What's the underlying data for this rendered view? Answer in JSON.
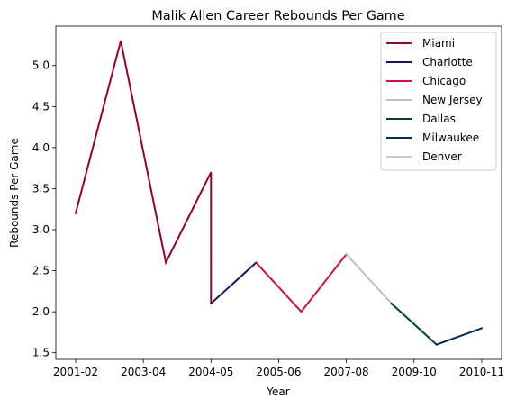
{
  "chart_data": {
    "type": "line",
    "title": "Malik Allen Career Rebounds Per Game",
    "xlabel": "Year",
    "ylabel": "Rebounds Per Game",
    "x_tick_labels": [
      "2001-02",
      "2003-04",
      "2004-05",
      "2005-06",
      "2007-08",
      "2009-10",
      "2010-11"
    ],
    "y_tick_labels": [
      "1.5",
      "2.0",
      "2.5",
      "3.0",
      "3.5",
      "4.0",
      "4.5",
      "5.0"
    ],
    "ylim": [
      1.42,
      5.48
    ],
    "grid": false,
    "legend_position": "top-right",
    "series": [
      {
        "name": "Miami",
        "color": "#98002E",
        "points": [
          [
            0,
            3.2
          ],
          [
            1,
            5.3
          ],
          [
            2,
            2.6
          ],
          [
            3,
            3.7
          ],
          [
            3,
            2.1
          ]
        ]
      },
      {
        "name": "Charlotte",
        "color": "#1D1160",
        "points": [
          [
            3,
            2.1
          ],
          [
            4,
            2.6
          ]
        ]
      },
      {
        "name": "Chicago",
        "color": "#CE1141",
        "points": [
          [
            4,
            2.6
          ],
          [
            5,
            2.0
          ],
          [
            6,
            2.7
          ]
        ]
      },
      {
        "name": "New Jersey",
        "color": "#BEC0C2",
        "points": [
          [
            6,
            2.7
          ],
          [
            7,
            2.1
          ]
        ]
      },
      {
        "name": "Dallas",
        "color": "#00471B",
        "points": [
          [
            7,
            2.1
          ],
          [
            8,
            1.6
          ]
        ]
      },
      {
        "name": "Milwaukee",
        "color": "#002B5C",
        "points": [
          [
            8,
            1.6
          ],
          [
            9,
            1.8
          ]
        ]
      },
      {
        "name": "Denver",
        "color": "#C4CED4",
        "points": []
      }
    ]
  }
}
